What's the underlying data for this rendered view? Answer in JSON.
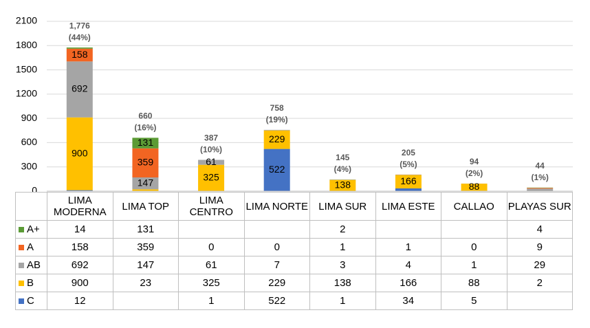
{
  "chart_data": {
    "type": "stacked_bar",
    "categories": [
      "LIMA MODERNA",
      "LIMA TOP",
      "LIMA CENTRO",
      "LIMA NORTE",
      "LIMA SUR",
      "LIMA ESTE",
      "CALLAO",
      "PLAYAS SUR"
    ],
    "series": [
      {
        "name": "C",
        "color": "#4472c4",
        "values": [
          12,
          null,
          1,
          522,
          1,
          34,
          5,
          null
        ]
      },
      {
        "name": "B",
        "color": "#ffc000",
        "values": [
          900,
          23,
          325,
          229,
          138,
          166,
          88,
          2
        ]
      },
      {
        "name": "AB",
        "color": "#a5a5a5",
        "values": [
          692,
          147,
          61,
          7,
          3,
          4,
          1,
          29
        ]
      },
      {
        "name": "A",
        "color": "#f26522",
        "values": [
          158,
          359,
          0,
          0,
          1,
          1,
          0,
          9
        ]
      },
      {
        "name": "A+",
        "color": "#5b9b35",
        "values": [
          14,
          131,
          null,
          null,
          2,
          null,
          null,
          4
        ]
      }
    ],
    "totals": [
      1776,
      660,
      387,
      758,
      145,
      205,
      94,
      44
    ],
    "total_labels": [
      "1,776",
      "660",
      "387",
      "758",
      "145",
      "205",
      "94",
      "44"
    ],
    "shares": [
      44,
      16,
      10,
      19,
      4,
      5,
      2,
      1
    ],
    "share_labels": [
      "(44%)",
      "(16%)",
      "(10%)",
      "(19%)",
      "(4%)",
      "(5%)",
      "(2%)",
      "(1%)"
    ],
    "ylim": [
      0,
      2100
    ],
    "yticks": [
      0,
      300,
      600,
      900,
      1200,
      1500,
      1800,
      2100
    ],
    "grid": true
  }
}
